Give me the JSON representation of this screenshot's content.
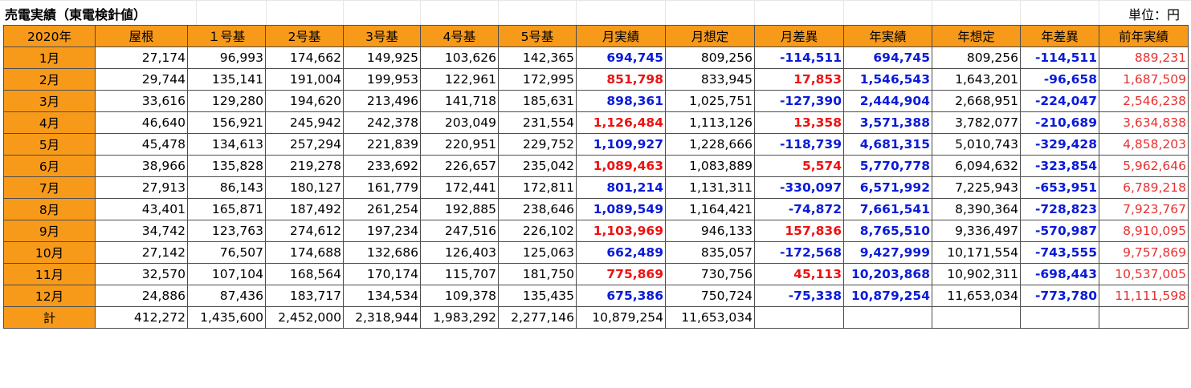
{
  "title": "売電実績（東電検針値）",
  "unit": "単位：円",
  "colors": {
    "header_bg": "#f79a1a",
    "positive_red": "#ee1111",
    "negative_blue": "#0a1bd9",
    "prev_year_red": "#e83030"
  },
  "headers": [
    "2020年",
    "屋根",
    "１号基",
    "2号基",
    "3号基",
    "4号基",
    "5号基",
    "月実績",
    "月想定",
    "月差異",
    "年実績",
    "年想定",
    "年差異",
    "前年実績"
  ],
  "rows": [
    {
      "label": "1月",
      "cells": [
        "27,174",
        "96,993",
        "174,662",
        "149,925",
        "103,626",
        "142,365",
        "694,745",
        "809,256",
        "-114,511",
        "694,745",
        "809,256",
        "-114,511",
        "889,231"
      ]
    },
    {
      "label": "2月",
      "cells": [
        "29,744",
        "135,141",
        "191,004",
        "199,953",
        "122,961",
        "172,995",
        "851,798",
        "833,945",
        "17,853",
        "1,546,543",
        "1,643,201",
        "-96,658",
        "1,687,509"
      ]
    },
    {
      "label": "3月",
      "cells": [
        "33,616",
        "129,280",
        "194,620",
        "213,496",
        "141,718",
        "185,631",
        "898,361",
        "1,025,751",
        "-127,390",
        "2,444,904",
        "2,668,951",
        "-224,047",
        "2,546,238"
      ]
    },
    {
      "label": "4月",
      "cells": [
        "46,640",
        "156,921",
        "245,942",
        "242,378",
        "203,049",
        "231,554",
        "1,126,484",
        "1,113,126",
        "13,358",
        "3,571,388",
        "3,782,077",
        "-210,689",
        "3,634,838"
      ]
    },
    {
      "label": "5月",
      "cells": [
        "45,478",
        "134,613",
        "257,294",
        "221,839",
        "220,951",
        "229,752",
        "1,109,927",
        "1,228,666",
        "-118,739",
        "4,681,315",
        "5,010,743",
        "-329,428",
        "4,858,203"
      ]
    },
    {
      "label": "6月",
      "cells": [
        "38,966",
        "135,828",
        "219,278",
        "233,692",
        "226,657",
        "235,042",
        "1,089,463",
        "1,083,889",
        "5,574",
        "5,770,778",
        "6,094,632",
        "-323,854",
        "5,962,646"
      ]
    },
    {
      "label": "7月",
      "cells": [
        "27,913",
        "86,143",
        "180,127",
        "161,779",
        "172,441",
        "172,811",
        "801,214",
        "1,131,311",
        "-330,097",
        "6,571,992",
        "7,225,943",
        "-653,951",
        "6,789,218"
      ]
    },
    {
      "label": "8月",
      "cells": [
        "43,401",
        "165,871",
        "187,492",
        "261,254",
        "192,885",
        "238,646",
        "1,089,549",
        "1,164,421",
        "-74,872",
        "7,661,541",
        "8,390,364",
        "-728,823",
        "7,923,767"
      ]
    },
    {
      "label": "9月",
      "cells": [
        "34,742",
        "123,763",
        "274,612",
        "197,234",
        "247,516",
        "226,102",
        "1,103,969",
        "946,133",
        "157,836",
        "8,765,510",
        "9,336,497",
        "-570,987",
        "8,910,095"
      ]
    },
    {
      "label": "10月",
      "cells": [
        "27,142",
        "76,507",
        "174,688",
        "132,686",
        "126,403",
        "125,063",
        "662,489",
        "835,057",
        "-172,568",
        "9,427,999",
        "10,171,554",
        "-743,555",
        "9,757,869"
      ]
    },
    {
      "label": "11月",
      "cells": [
        "32,570",
        "107,104",
        "168,564",
        "170,174",
        "115,707",
        "181,750",
        "775,869",
        "730,756",
        "45,113",
        "10,203,868",
        "10,902,311",
        "-698,443",
        "10,537,005"
      ]
    },
    {
      "label": "12月",
      "cells": [
        "24,886",
        "87,436",
        "183,717",
        "134,534",
        "109,378",
        "135,435",
        "675,386",
        "750,724",
        "-75,338",
        "10,879,254",
        "11,653,034",
        "-773,780",
        "11,111,598"
      ]
    }
  ],
  "total": {
    "label": "計",
    "cells": [
      "412,272",
      "1,435,600",
      "2,452,000",
      "2,318,944",
      "1,983,292",
      "2,277,146",
      "10,879,254",
      "11,653,034",
      "",
      "",
      "",
      "",
      ""
    ]
  }
}
